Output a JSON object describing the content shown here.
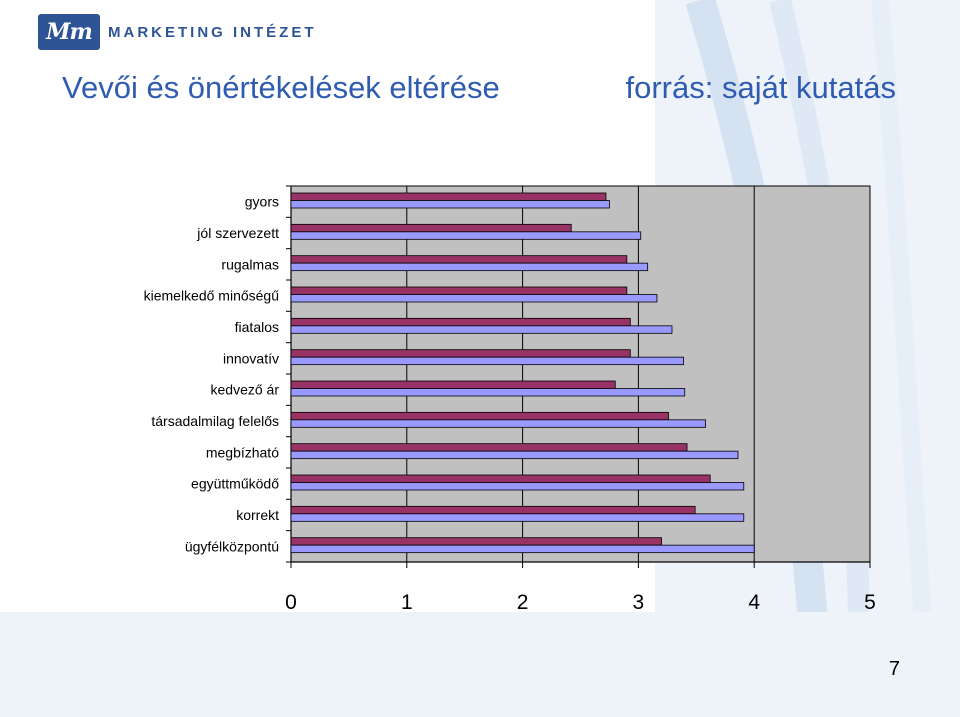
{
  "slide": {
    "logo_text": "MARKETING INTÉZET",
    "logo_mark": "Mm",
    "title": "Vevői és önértékelések eltérése",
    "source": "forrás: saját kutatás",
    "page_number": "7"
  },
  "colors": {
    "series_a": "#993366",
    "series_b": "#9999ff",
    "plot_bg": "#c0c0c0",
    "title": "#2f5cb0"
  },
  "chart_data": {
    "type": "bar",
    "orientation": "horizontal",
    "categories": [
      "gyors",
      "jól szervezett",
      "rugalmas",
      "kiemelkedő minőségű",
      "fiatalos",
      "innovatív",
      "kedvező ár",
      "társadalmilag felelős",
      "megbízható",
      "együttműködő",
      "korrekt",
      "ügyfélközpontú"
    ],
    "series": [
      {
        "values": [
          2.72,
          2.42,
          2.9,
          2.9,
          2.93,
          2.93,
          2.8,
          3.26,
          3.42,
          3.62,
          3.49,
          3.2
        ]
      },
      {
        "values": [
          2.75,
          3.02,
          3.08,
          3.16,
          3.29,
          3.39,
          3.4,
          3.58,
          3.86,
          3.91,
          3.91,
          4.0
        ]
      }
    ],
    "xlim": [
      0,
      5
    ],
    "x_ticks": [
      "0",
      "1",
      "2",
      "3",
      "4",
      "5"
    ],
    "grid": true,
    "legend": "none"
  }
}
